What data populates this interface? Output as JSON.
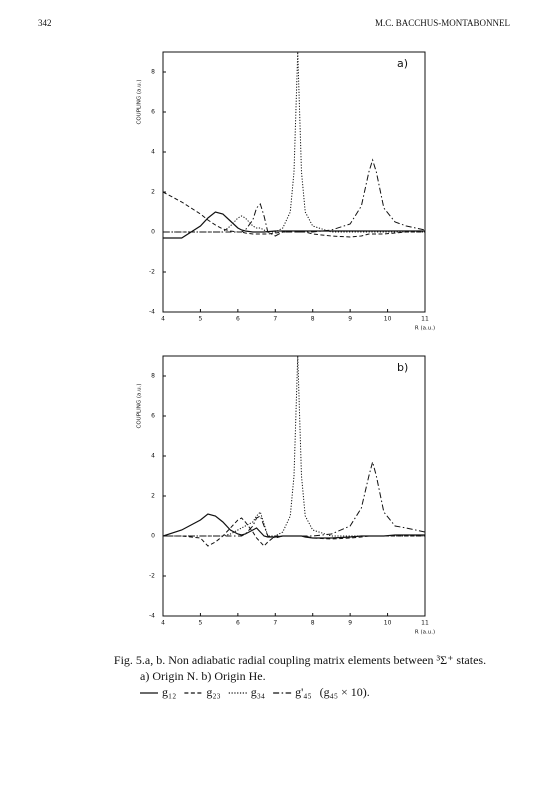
{
  "header": {
    "page": "342",
    "author": "M.C. BACCHUS-MONTABONNEL"
  },
  "caption": {
    "line1": "Fig. 5.a, b. Non adiabatic radial coupling matrix elements between ³Σ⁺ states.",
    "line2": "a) Origin N.  b) Origin He.",
    "note": "(g₄₅ × 10)."
  },
  "chart_data": [
    {
      "type": "line",
      "annotation": "a)",
      "xlabel": "R (a.u.)",
      "ylabel": "COUPLING (a.u.)",
      "xlim": [
        4,
        11
      ],
      "xticks": [
        4,
        5,
        6,
        7,
        8,
        9,
        10,
        11
      ],
      "ylim": [
        -4,
        9
      ],
      "yticks": [
        -4,
        -2,
        0,
        2,
        4,
        6,
        8
      ],
      "x": [
        4,
        4.5,
        5,
        5.2,
        5.4,
        5.6,
        5.8,
        6,
        6.1,
        6.2,
        6.4,
        6.5,
        6.6,
        6.7,
        6.8,
        7,
        7.2,
        7.4,
        7.5,
        7.55,
        7.6,
        7.65,
        7.7,
        7.8,
        8,
        8.5,
        9,
        9.3,
        9.5,
        9.6,
        9.7,
        9.9,
        10.2,
        10.5,
        11
      ],
      "series": [
        {
          "name": "g₁₂",
          "color": "#111",
          "dash": "solid",
          "values": [
            -0.3,
            -0.3,
            0.3,
            0.7,
            1.0,
            0.9,
            0.55,
            0.2,
            0.1,
            0.05,
            0,
            0,
            0,
            0,
            0.02,
            0.05,
            0.05,
            0.05,
            0.05,
            0.05,
            0.05,
            0.05,
            0.05,
            0.05,
            0.05,
            0.05,
            0.05,
            0.05,
            0.05,
            0.05,
            0.05,
            0.05,
            0.05,
            0.05,
            0.05
          ]
        },
        {
          "name": "g₂₃",
          "color": "#111",
          "dash": "dashed",
          "values": [
            2.0,
            1.5,
            0.9,
            0.6,
            0.35,
            0.15,
            0.05,
            0,
            0,
            -0.05,
            -0.1,
            -0.1,
            -0.1,
            -0.1,
            -0.1,
            -0.05,
            0,
            0,
            0,
            0,
            0,
            0,
            0,
            0,
            -0.1,
            -0.2,
            -0.25,
            -0.2,
            -0.1,
            -0.1,
            -0.1,
            -0.1,
            -0.05,
            0,
            0
          ]
        },
        {
          "name": "g₃₄",
          "color": "#111",
          "dash": "dotted",
          "values": [
            0,
            0,
            0,
            0,
            0,
            0,
            0.3,
            0.7,
            0.8,
            0.7,
            0.3,
            0.2,
            0.2,
            0.1,
            0,
            0,
            0.2,
            1.0,
            3,
            6,
            9,
            6,
            3,
            1,
            0.3,
            0,
            0,
            0,
            0,
            0,
            0,
            0,
            0,
            0,
            0
          ]
        },
        {
          "name": "g'₄₅",
          "color": "#111",
          "dash": "dashdot",
          "values": [
            0,
            0,
            0,
            0,
            0,
            0,
            0,
            0,
            0,
            0.1,
            0.6,
            1.2,
            1.4,
            0.8,
            0,
            -0.2,
            0,
            0,
            0,
            0,
            0,
            0,
            0,
            0,
            0,
            0.1,
            0.4,
            1.3,
            3.0,
            3.6,
            3.0,
            1.2,
            0.5,
            0.3,
            0.1
          ]
        }
      ]
    },
    {
      "type": "line",
      "annotation": "b)",
      "xlabel": "R (a.u.)",
      "ylabel": "COUPLING (a.u.)",
      "xlim": [
        4,
        11
      ],
      "xticks": [
        4,
        5,
        6,
        7,
        8,
        9,
        10,
        11
      ],
      "ylim": [
        -4,
        9
      ],
      "yticks": [
        -4,
        -2,
        0,
        2,
        4,
        6,
        8
      ],
      "x": [
        4,
        4.5,
        5,
        5.2,
        5.4,
        5.6,
        5.8,
        6,
        6.1,
        6.2,
        6.4,
        6.5,
        6.6,
        6.7,
        6.8,
        7,
        7.2,
        7.4,
        7.5,
        7.55,
        7.6,
        7.65,
        7.7,
        7.8,
        8,
        8.5,
        9,
        9.3,
        9.5,
        9.6,
        9.7,
        9.9,
        10.2,
        10.5,
        11
      ],
      "series": [
        {
          "color": "#111",
          "dash": "solid",
          "values": [
            0,
            0.3,
            0.8,
            1.1,
            1.0,
            0.7,
            0.3,
            0.1,
            0.05,
            0.1,
            0.3,
            0.4,
            0.2,
            0,
            -0.05,
            -0.05,
            0,
            0,
            0,
            0,
            0,
            0,
            0,
            -0.05,
            -0.1,
            -0.1,
            -0.05,
            0,
            0,
            0,
            0,
            0,
            0.05,
            0.05,
            0.05
          ]
        },
        {
          "color": "#111",
          "dash": "dashed",
          "values": [
            0,
            0,
            -0.1,
            -0.5,
            -0.3,
            0,
            0.4,
            0.8,
            0.9,
            0.7,
            0.2,
            -0.1,
            -0.3,
            -0.5,
            -0.3,
            0,
            0,
            0,
            0,
            0,
            0,
            0,
            0,
            0,
            -0.1,
            -0.15,
            -0.1,
            -0.05,
            0,
            0,
            0,
            0,
            0,
            0,
            0
          ]
        },
        {
          "color": "#111",
          "dash": "dotted",
          "values": [
            0,
            0,
            0,
            0,
            0,
            0,
            0.1,
            0.3,
            0.4,
            0.5,
            0.7,
            1.0,
            1.2,
            0.6,
            0,
            0,
            0.2,
            1.0,
            3,
            6,
            9,
            6,
            3,
            1,
            0.3,
            0,
            0,
            0,
            0,
            0,
            0,
            0,
            0,
            0,
            0
          ]
        },
        {
          "color": "#111",
          "dash": "dashdot",
          "values": [
            0,
            0,
            0,
            0,
            0,
            0,
            0,
            0,
            0,
            0.1,
            0.5,
            0.9,
            1.0,
            0.5,
            0,
            -0.1,
            0,
            0,
            0,
            0,
            0,
            0,
            0,
            0,
            0,
            0.1,
            0.5,
            1.4,
            3.0,
            3.7,
            3.0,
            1.2,
            0.5,
            0.4,
            0.2
          ]
        }
      ]
    }
  ]
}
